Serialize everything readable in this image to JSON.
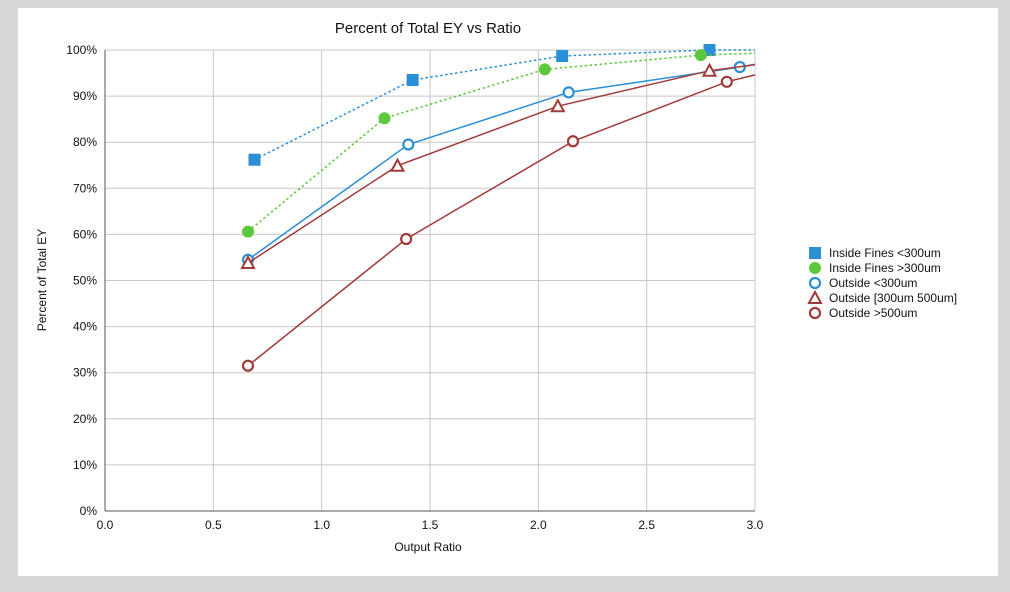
{
  "chart_data": {
    "type": "line",
    "title": "Percent of Total EY vs Ratio",
    "xlabel": "Output Ratio",
    "ylabel": "Percent of Total EY",
    "xlim": [
      0,
      3.0
    ],
    "ylim": [
      0,
      100
    ],
    "x_ticks": [
      "0.0",
      "0.5",
      "1.0",
      "1.5",
      "2.0",
      "2.5",
      "3.0"
    ],
    "y_ticks": [
      "0%",
      "10%",
      "20%",
      "30%",
      "40%",
      "50%",
      "60%",
      "70%",
      "80%",
      "90%",
      "100%"
    ],
    "grid": true,
    "legend_position": "right",
    "series": [
      {
        "name": "Inside Fines <300um",
        "color": "#2b8fd6",
        "marker": "square-filled",
        "line_style": "dotted",
        "points": [
          [
            0.69,
            76.2
          ],
          [
            1.42,
            93.5
          ],
          [
            2.11,
            98.7
          ],
          [
            2.79,
            100.0
          ]
        ],
        "trend": [
          [
            0.69,
            76.2
          ],
          [
            1.42,
            93.5
          ],
          [
            2.11,
            98.7
          ],
          [
            2.79,
            100.0
          ],
          [
            3.0,
            100.0
          ]
        ]
      },
      {
        "name": "Inside Fines >300um",
        "color": "#5cc83c",
        "marker": "circle-filled",
        "line_style": "dotted",
        "points": [
          [
            0.66,
            60.6
          ],
          [
            1.29,
            85.2
          ],
          [
            2.03,
            95.8
          ],
          [
            2.75,
            98.9
          ]
        ],
        "trend": [
          [
            0.66,
            60.6
          ],
          [
            1.29,
            85.2
          ],
          [
            2.03,
            95.8
          ],
          [
            2.75,
            98.9
          ],
          [
            3.0,
            99.3
          ]
        ]
      },
      {
        "name": "Outside <300um",
        "color": "#2b8fd6",
        "marker": "circle-open",
        "line_style": "solid",
        "points": [
          [
            0.66,
            54.5
          ],
          [
            1.4,
            79.5
          ],
          [
            2.14,
            90.8
          ],
          [
            2.93,
            96.3
          ]
        ],
        "trend": [
          [
            0.66,
            54.5
          ],
          [
            1.4,
            79.5
          ],
          [
            2.14,
            90.8
          ],
          [
            2.93,
            96.3
          ],
          [
            3.0,
            96.9
          ]
        ]
      },
      {
        "name": "Outside [300um 500um]",
        "color": "#a33a3a",
        "marker": "triangle-open",
        "line_style": "solid",
        "points": [
          [
            0.66,
            53.8
          ],
          [
            1.35,
            74.9
          ],
          [
            2.09,
            87.8
          ],
          [
            2.79,
            95.5
          ]
        ],
        "trend": [
          [
            0.66,
            53.8
          ],
          [
            1.35,
            74.9
          ],
          [
            2.09,
            87.8
          ],
          [
            2.79,
            95.5
          ],
          [
            3.0,
            96.8
          ]
        ]
      },
      {
        "name": "Outside >500um",
        "color": "#a33a3a",
        "marker": "circle-open",
        "line_style": "solid",
        "points": [
          [
            0.66,
            31.5
          ],
          [
            1.39,
            59.0
          ],
          [
            2.16,
            80.2
          ],
          [
            2.87,
            93.1
          ]
        ],
        "trend": [
          [
            0.66,
            31.5
          ],
          [
            1.39,
            59.0
          ],
          [
            2.16,
            80.2
          ],
          [
            2.87,
            93.1
          ],
          [
            3.0,
            94.6
          ]
        ]
      }
    ]
  }
}
